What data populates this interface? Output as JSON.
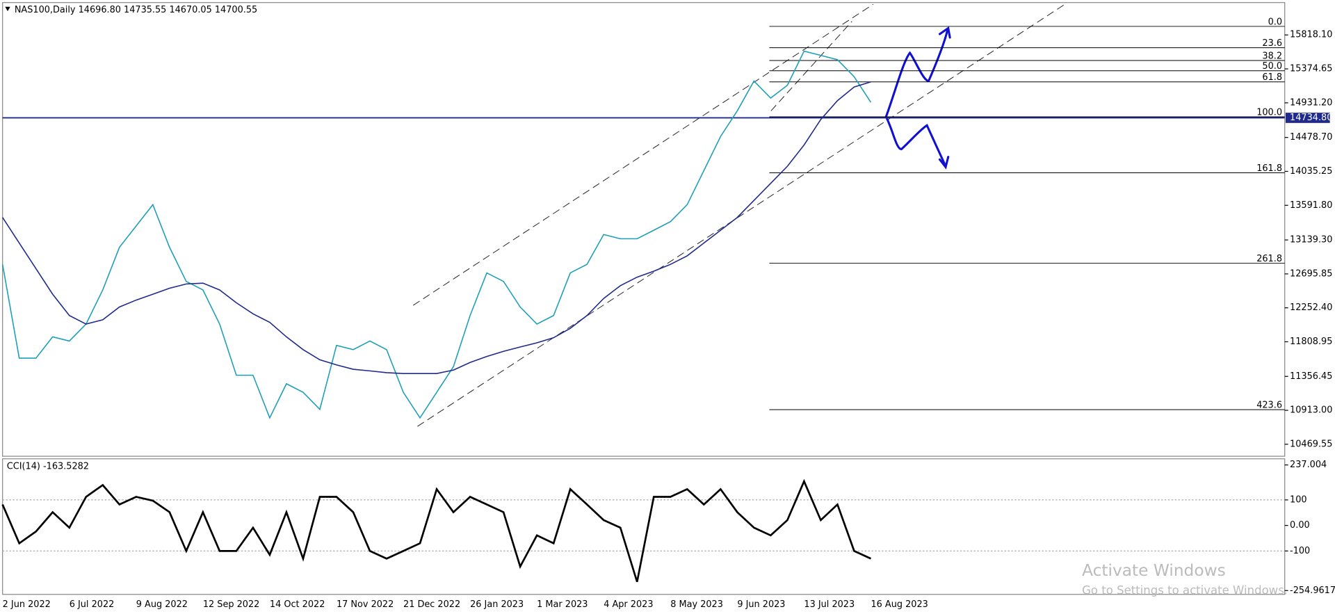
{
  "chart_data": [
    {
      "type": "line",
      "title": "NAS100,Daily  14696.80 14735.55 14670.05 14700.55",
      "categories": [
        "2 Jun 2022",
        null,
        null,
        null,
        "6 Jul 2022",
        null,
        null,
        null,
        "9 Aug 2022",
        null,
        null,
        null,
        "12 Sep 2022",
        null,
        null,
        null,
        "14 Oct 2022",
        null,
        null,
        null,
        "17 Nov 2022",
        null,
        null,
        null,
        "21 Dec 2022",
        null,
        null,
        null,
        "26 Jan 2023",
        null,
        null,
        null,
        "1 Mar 2023",
        null,
        null,
        null,
        "4 Apr 2023",
        null,
        null,
        null,
        "8 May 2023",
        null,
        null,
        null,
        "9 Jun 2023",
        null,
        null,
        null,
        "13 Jul 2023",
        null,
        null,
        null,
        "16 Aug 2023"
      ],
      "series": [
        {
          "color": "#1e9fb8",
          "values": [
            12820,
            11595,
            11595,
            11873,
            11818,
            12040,
            12486,
            13043,
            13322,
            13600,
            13043,
            12597,
            12486,
            12040,
            11372,
            11372,
            10815,
            11260,
            11149,
            10926,
            11762,
            11706,
            11818,
            11706,
            11149,
            10815,
            11149,
            11483,
            12152,
            12709,
            12597,
            12263,
            12040,
            12152,
            12709,
            12820,
            13210,
            13155,
            13155,
            13266,
            13378,
            13600,
            14046,
            14492,
            14826,
            15216,
            14993,
            15160,
            15606,
            15551,
            15495,
            15272,
            14938
          ]
        },
        {
          "color": "#1f2a8c",
          "values": [
            13433,
            13099,
            12765,
            12430,
            12152,
            12040,
            12096,
            12263,
            12353,
            12430,
            12508,
            12564,
            12575,
            12486,
            12319,
            12174,
            12063,
            11873,
            11706,
            11573,
            11506,
            11450,
            11428,
            11405,
            11394,
            11394,
            11394,
            11439,
            11539,
            11617,
            11684,
            11740,
            11795,
            11862,
            11985,
            12152,
            12375,
            12542,
            12653,
            12731,
            12820,
            12932,
            13099,
            13266,
            13433,
            13656,
            13879,
            14102,
            14380,
            14714,
            14960,
            15138,
            15205
          ]
        }
      ],
      "ylim": [
        10313,
        16219
      ],
      "yticks": [
        {
          "value": 15818.1,
          "label": "15818.10"
        },
        {
          "value": 15374.65,
          "label": "15374.65"
        },
        {
          "value": 14931.2,
          "label": "14931.20"
        },
        {
          "value": 14478.7,
          "label": "14478.70"
        },
        {
          "value": 14035.25,
          "label": "14035.25"
        },
        {
          "value": 13591.8,
          "label": "13591.80"
        },
        {
          "value": 13139.3,
          "label": "13139.30"
        },
        {
          "value": 12695.85,
          "label": "12695.85"
        },
        {
          "value": 12252.4,
          "label": "12252.40"
        },
        {
          "value": 11808.95,
          "label": "11808.95"
        },
        {
          "value": 11356.45,
          "label": "11356.45"
        },
        {
          "value": 10913,
          "label": "10913.00"
        },
        {
          "value": 10469.55,
          "label": "10469.55"
        }
      ],
      "current_price": {
        "value": 14734.8,
        "label": "14734.80",
        "color": "#1f2a8c"
      },
      "fib_levels": [
        {
          "label": "0.0",
          "value": 15930
        },
        {
          "label": "23.6",
          "value": 15651
        },
        {
          "label": "38.2",
          "value": 15484
        },
        {
          "label": "50.0",
          "value": 15350
        },
        {
          "label": "61.8",
          "value": 15205
        },
        {
          "label": "100.0",
          "value": 14748
        },
        {
          "label": "161.8",
          "value": 14017
        },
        {
          "label": "261.8",
          "value": 12835
        },
        {
          "label": "423.6",
          "value": 10922
        }
      ]
    },
    {
      "type": "line",
      "title": "CCI(14) -163.5282",
      "series": [
        {
          "color": "#000000",
          "values": [
            82,
            -70,
            -24,
            52,
            -9,
            112,
            158,
            82,
            112,
            97,
            52,
            -100,
            52,
            -100,
            -100,
            -9,
            -115,
            52,
            -130,
            112,
            112,
            52,
            -100,
            -130,
            -100,
            -70,
            142,
            52,
            112,
            82,
            52,
            -161,
            -39,
            -70,
            142,
            82,
            21,
            -9,
            -221,
            112,
            112,
            142,
            82,
            142,
            52,
            -9,
            -39,
            21,
            173,
            21,
            82,
            -100,
            -130
          ]
        }
      ],
      "ylim": [
        -270,
        261
      ],
      "yticks": [
        237.004,
        100,
        {
          "value": 0,
          "label": "0.00"
        },
        -100,
        -254.9617
      ],
      "levels": [
        100,
        -100
      ]
    }
  ],
  "watermark": {
    "title": "Activate Windows",
    "subtitle": "Go to Settings to activate Windows."
  }
}
